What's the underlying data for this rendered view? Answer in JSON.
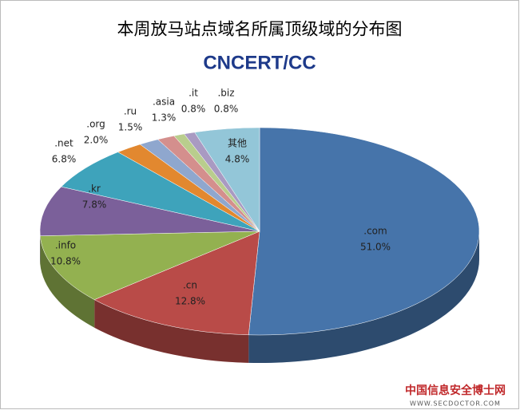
{
  "chart_data": {
    "type": "pie3d",
    "title": "本周放马站点域名所属顶级域的分布图",
    "logo": "CNCERT/CC",
    "categories": [
      ".com",
      ".cn",
      ".info",
      ".kr",
      ".net",
      ".org",
      ".ru",
      ".asia",
      ".it",
      ".biz",
      "其他"
    ],
    "values": [
      51.0,
      12.8,
      10.8,
      7.8,
      6.8,
      2.0,
      1.5,
      1.3,
      0.8,
      0.8,
      4.8
    ],
    "value_labels": [
      "51.0%",
      "12.8%",
      "10.8%",
      "7.8%",
      "6.8%",
      "2.0%",
      "1.5%",
      "1.3%",
      "0.8%",
      "0.8%",
      "4.8%"
    ],
    "colors": [
      "#4674aa",
      "#b94b48",
      "#93b150",
      "#7b609a",
      "#3ea3bb",
      "#e2882f",
      "#8fa7ce",
      "#d48f8d",
      "#b9cd8d",
      "#a99ac2",
      "#93c6d8"
    ],
    "watermark": "中国信息安全博士网",
    "watermark_url": "WWW.SECDOCTOR.COM"
  }
}
